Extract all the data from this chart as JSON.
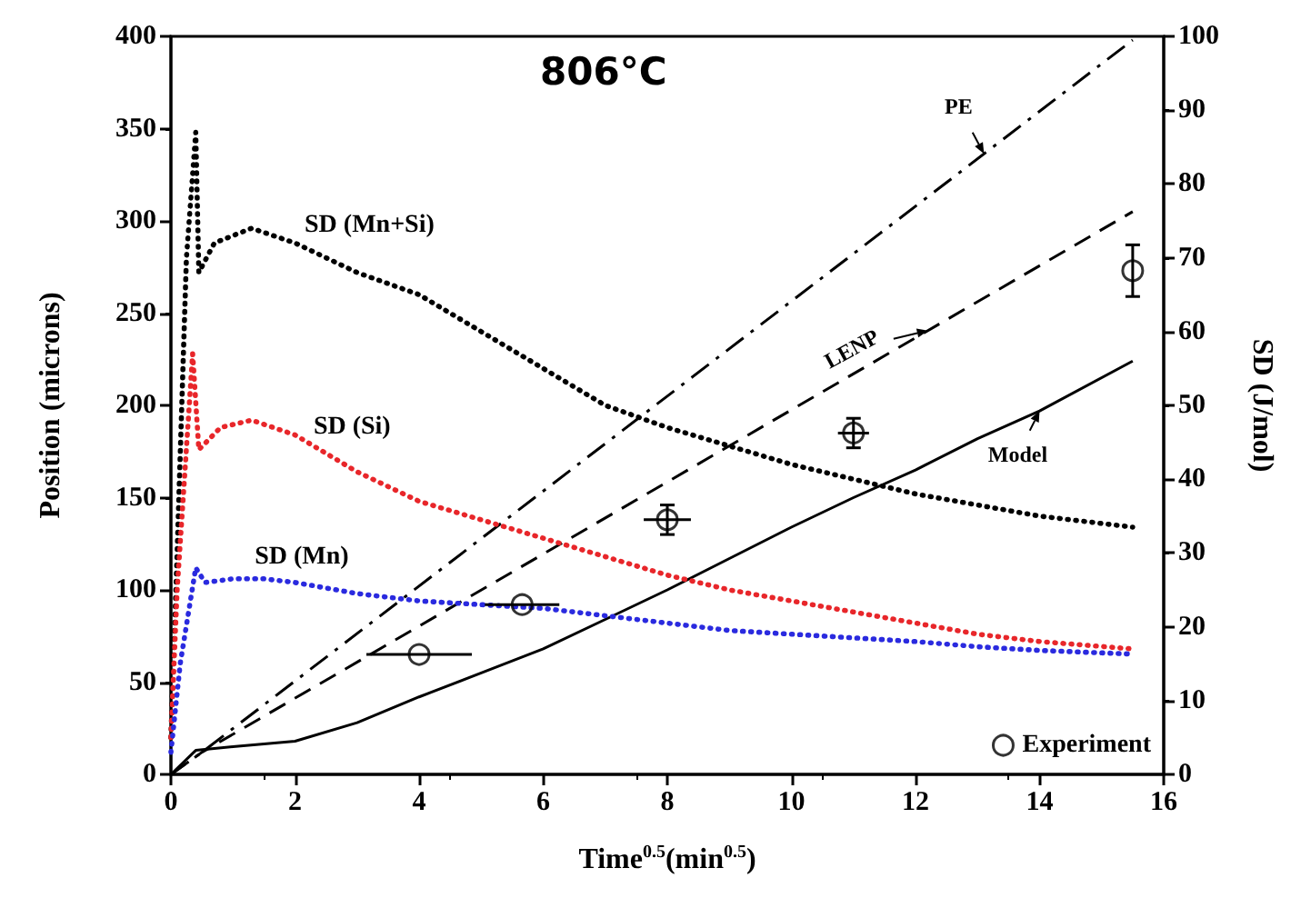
{
  "chart_data": {
    "type": "line",
    "title": "806°C",
    "xlabel": "Time$^{0.5}$(min$^{0.5}$)",
    "ylabel": "Position (microns)",
    "y2label": "SD (J/mol)",
    "xlim": [
      0,
      16
    ],
    "xticks": [
      0,
      2,
      4,
      6,
      8,
      10,
      12,
      14,
      16
    ],
    "ylim": [
      0,
      400
    ],
    "yticks": [
      0,
      50,
      100,
      150,
      200,
      250,
      300,
      350,
      400
    ],
    "y2lim": [
      0,
      100
    ],
    "y2ticks": [
      0,
      10,
      20,
      30,
      40,
      50,
      60,
      70,
      80,
      90,
      100
    ],
    "grid": false,
    "legend": "bottom right",
    "marker": "none",
    "series": [
      {
        "name": "PE",
        "color": "#000000",
        "line_style": "dashdot",
        "x": [
          0,
          0.5,
          15.5
        ],
        "values": [
          0,
          12,
          398
        ]
      },
      {
        "name": "LENP",
        "color": "#000000",
        "line_style": "dashed",
        "x": [
          0,
          0.5,
          15.5
        ],
        "values": [
          0,
          12,
          305
        ]
      },
      {
        "name": "Model",
        "color": "#000000",
        "line_style": "solid",
        "x": [
          0,
          0.4,
          1,
          2,
          3,
          4,
          5,
          6,
          7,
          8,
          9,
          10,
          11,
          12,
          13,
          14,
          15.5
        ],
        "values": [
          0,
          13,
          15,
          18,
          28,
          42,
          55,
          68,
          84,
          100,
          117,
          134,
          150,
          165,
          182,
          197,
          224
        ]
      },
      {
        "name": "SD (Mn+Si)",
        "color": "#000000",
        "line_style": "dotted",
        "axis": "y2",
        "x": [
          0,
          0.1,
          0.25,
          0.4,
          0.45,
          0.7,
          1.3,
          2,
          3,
          4,
          5,
          6,
          7,
          8,
          9,
          10,
          11,
          12,
          13,
          14,
          15.5
        ],
        "values": [
          5,
          30,
          70,
          87,
          68,
          72,
          74,
          72,
          68,
          65,
          60,
          55,
          50,
          47,
          44.5,
          42,
          40,
          38,
          36.5,
          35,
          33.5
        ]
      },
      {
        "name": "SD (Si)",
        "color": "#e8262a",
        "line_style": "dotted",
        "axis": "y2",
        "x": [
          0,
          0.1,
          0.35,
          0.45,
          0.8,
          1.3,
          2,
          3,
          4,
          5,
          6,
          7,
          8,
          9,
          10,
          11,
          12,
          13,
          14,
          15.5
        ],
        "values": [
          5,
          25,
          57,
          44,
          47,
          48,
          46,
          41,
          37,
          34.5,
          32,
          29.5,
          27,
          25,
          23.5,
          22,
          20.5,
          19,
          18,
          17
        ]
      },
      {
        "name": "SD (Mn)",
        "color": "#2a2adf",
        "line_style": "dotted",
        "axis": "y2",
        "x": [
          0,
          0.15,
          0.4,
          0.55,
          1,
          1.5,
          2,
          3,
          4,
          5,
          6,
          7,
          8,
          9,
          10,
          11,
          12,
          13,
          14,
          15.5
        ],
        "values": [
          3,
          15,
          28,
          26,
          26.5,
          26.5,
          26,
          24.5,
          23.5,
          23,
          22.5,
          21.5,
          20.5,
          19.5,
          19,
          18.5,
          18,
          17.3,
          16.8,
          16.3
        ]
      },
      {
        "type": "scatter",
        "name": "Experiment",
        "color": "#000000",
        "marker": "circle",
        "x": [
          4,
          5.66,
          8,
          11,
          15.5
        ],
        "values": [
          65,
          92,
          138,
          185,
          273
        ],
        "errors": [
          null,
          null,
          8,
          8,
          14
        ],
        "xerrors": [
          0.85,
          0.6,
          0.38,
          0.25,
          null
        ]
      }
    ]
  }
}
